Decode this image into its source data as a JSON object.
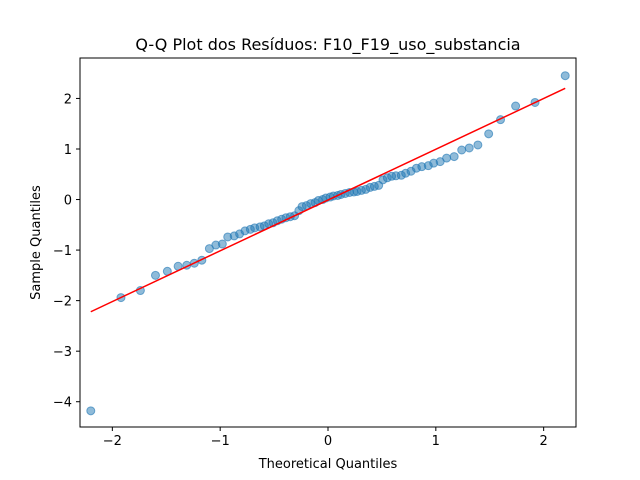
{
  "chart_data": {
    "type": "scatter",
    "title": "Q-Q Plot dos Resíduos: F10_F19_uso_substancia",
    "xlabel": "Theoretical Quantiles",
    "ylabel": "Sample Quantiles",
    "xlim": [
      -2.3,
      2.3
    ],
    "ylim": [
      -4.5,
      2.8
    ],
    "x_ticks": [
      -2,
      -1,
      0,
      1,
      2
    ],
    "x_tick_labels": [
      "−2",
      "−1",
      "0",
      "1",
      "2"
    ],
    "y_ticks": [
      -4,
      -3,
      -2,
      -1,
      0,
      1,
      2
    ],
    "y_tick_labels": [
      "−4",
      "−3",
      "−2",
      "−1",
      "0",
      "1",
      "2"
    ],
    "grid": false,
    "colors": {
      "points": "#1f77b4",
      "line": "#ff0000"
    },
    "reference_line": {
      "x": [
        -2.2,
        2.2
      ],
      "y": [
        -2.22,
        2.2
      ]
    },
    "points": [
      [
        -2.2,
        -4.18
      ],
      [
        -1.92,
        -1.94
      ],
      [
        -1.74,
        -1.8
      ],
      [
        -1.6,
        -1.5
      ],
      [
        -1.49,
        -1.42
      ],
      [
        -1.39,
        -1.32
      ],
      [
        -1.31,
        -1.3
      ],
      [
        -1.24,
        -1.26
      ],
      [
        -1.17,
        -1.2
      ],
      [
        -1.1,
        -0.97
      ],
      [
        -1.04,
        -0.9
      ],
      [
        -0.98,
        -0.88
      ],
      [
        -0.93,
        -0.74
      ],
      [
        -0.87,
        -0.72
      ],
      [
        -0.82,
        -0.68
      ],
      [
        -0.77,
        -0.62
      ],
      [
        -0.72,
        -0.59
      ],
      [
        -0.68,
        -0.56
      ],
      [
        -0.63,
        -0.54
      ],
      [
        -0.59,
        -0.52
      ],
      [
        -0.55,
        -0.48
      ],
      [
        -0.51,
        -0.46
      ],
      [
        -0.47,
        -0.42
      ],
      [
        -0.43,
        -0.39
      ],
      [
        -0.39,
        -0.36
      ],
      [
        -0.35,
        -0.34
      ],
      [
        -0.31,
        -0.32
      ],
      [
        -0.27,
        -0.22
      ],
      [
        -0.24,
        -0.14
      ],
      [
        -0.2,
        -0.12
      ],
      [
        -0.16,
        -0.08
      ],
      [
        -0.12,
        -0.06
      ],
      [
        -0.09,
        -0.02
      ],
      [
        -0.05,
        0.0
      ],
      [
        -0.02,
        0.03
      ],
      [
        0.02,
        0.05
      ],
      [
        0.05,
        0.07
      ],
      [
        0.09,
        0.08
      ],
      [
        0.12,
        0.1
      ],
      [
        0.16,
        0.12
      ],
      [
        0.2,
        0.14
      ],
      [
        0.24,
        0.15
      ],
      [
        0.27,
        0.16
      ],
      [
        0.31,
        0.18
      ],
      [
        0.35,
        0.2
      ],
      [
        0.39,
        0.24
      ],
      [
        0.43,
        0.26
      ],
      [
        0.47,
        0.28
      ],
      [
        0.51,
        0.39
      ],
      [
        0.55,
        0.43
      ],
      [
        0.59,
        0.46
      ],
      [
        0.63,
        0.47
      ],
      [
        0.68,
        0.48
      ],
      [
        0.72,
        0.52
      ],
      [
        0.77,
        0.56
      ],
      [
        0.82,
        0.62
      ],
      [
        0.87,
        0.65
      ],
      [
        0.93,
        0.67
      ],
      [
        0.98,
        0.72
      ],
      [
        1.04,
        0.75
      ],
      [
        1.1,
        0.82
      ],
      [
        1.17,
        0.85
      ],
      [
        1.24,
        0.98
      ],
      [
        1.31,
        1.02
      ],
      [
        1.39,
        1.08
      ],
      [
        1.49,
        1.3
      ],
      [
        1.6,
        1.58
      ],
      [
        1.74,
        1.85
      ],
      [
        1.92,
        1.92
      ],
      [
        2.2,
        2.45
      ]
    ]
  }
}
